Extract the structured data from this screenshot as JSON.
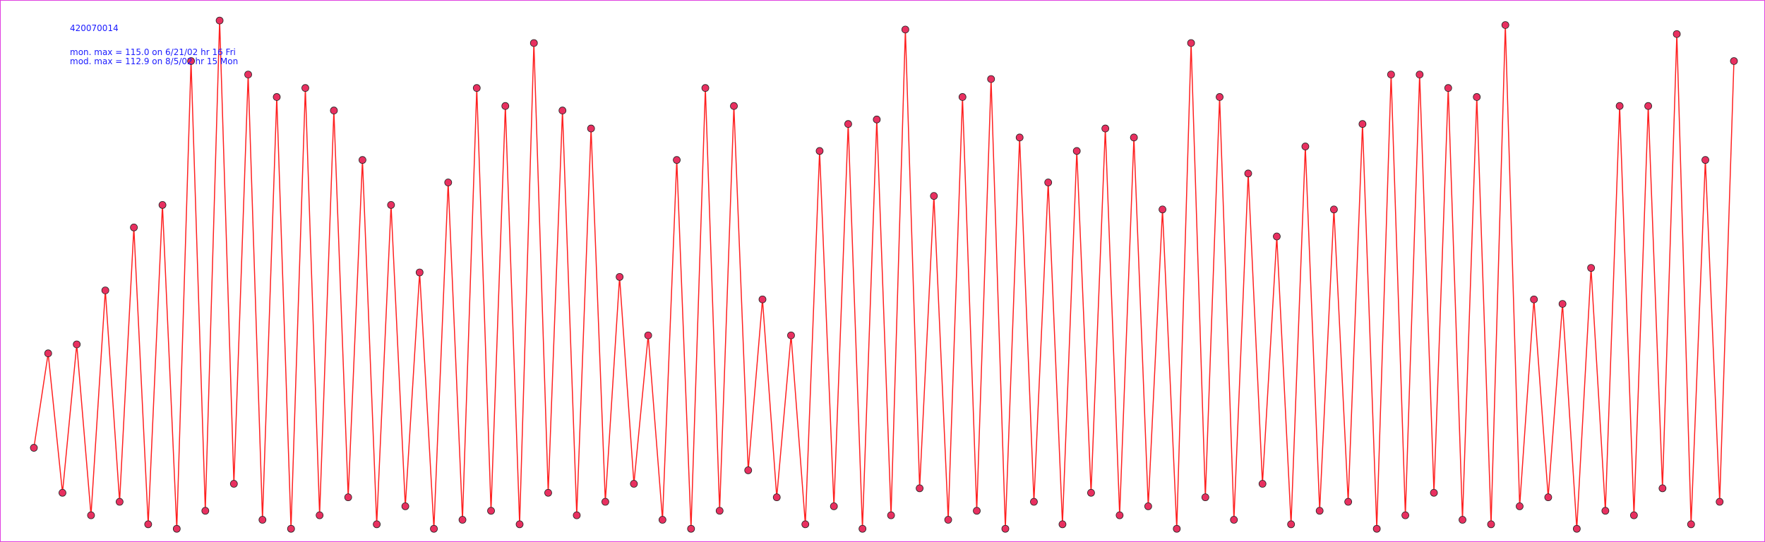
{
  "chart_data": {
    "type": "line",
    "title": "420070014",
    "annotations": [
      "mon. max =  115.0 on 6/21/02 hr 16 Fri",
      "mod. max =  112.9 on 8/5/02 hr 15 Mon"
    ],
    "ylim": [
      0,
      118
    ],
    "series": [
      {
        "color": "#ff2020",
        "marker_color": "#e83060",
        "values": [
          20,
          41,
          10,
          43,
          5,
          55,
          8,
          69,
          3,
          74,
          2,
          106,
          6,
          115,
          12,
          103,
          4,
          98,
          2,
          100,
          5,
          95,
          9,
          84,
          3,
          74,
          7,
          59,
          2,
          79,
          4,
          100,
          6,
          96,
          3,
          110,
          10,
          95,
          5,
          91,
          8,
          58,
          12,
          45,
          4,
          84,
          2,
          100,
          6,
          96,
          15,
          53,
          9,
          45,
          3,
          86,
          7,
          92,
          2,
          93,
          5,
          113,
          11,
          76,
          4,
          98,
          6,
          102,
          2,
          89,
          8,
          79,
          3,
          86,
          10,
          91,
          5,
          89,
          7,
          73,
          2,
          110,
          9,
          98,
          4,
          81,
          12,
          67,
          3,
          87,
          6,
          73,
          8,
          92,
          2,
          103,
          5,
          103,
          10,
          100,
          4,
          98,
          3,
          114,
          7,
          53,
          9,
          52,
          2,
          60,
          6,
          96,
          5,
          96,
          11,
          112,
          3,
          84,
          8,
          106
        ]
      }
    ]
  }
}
